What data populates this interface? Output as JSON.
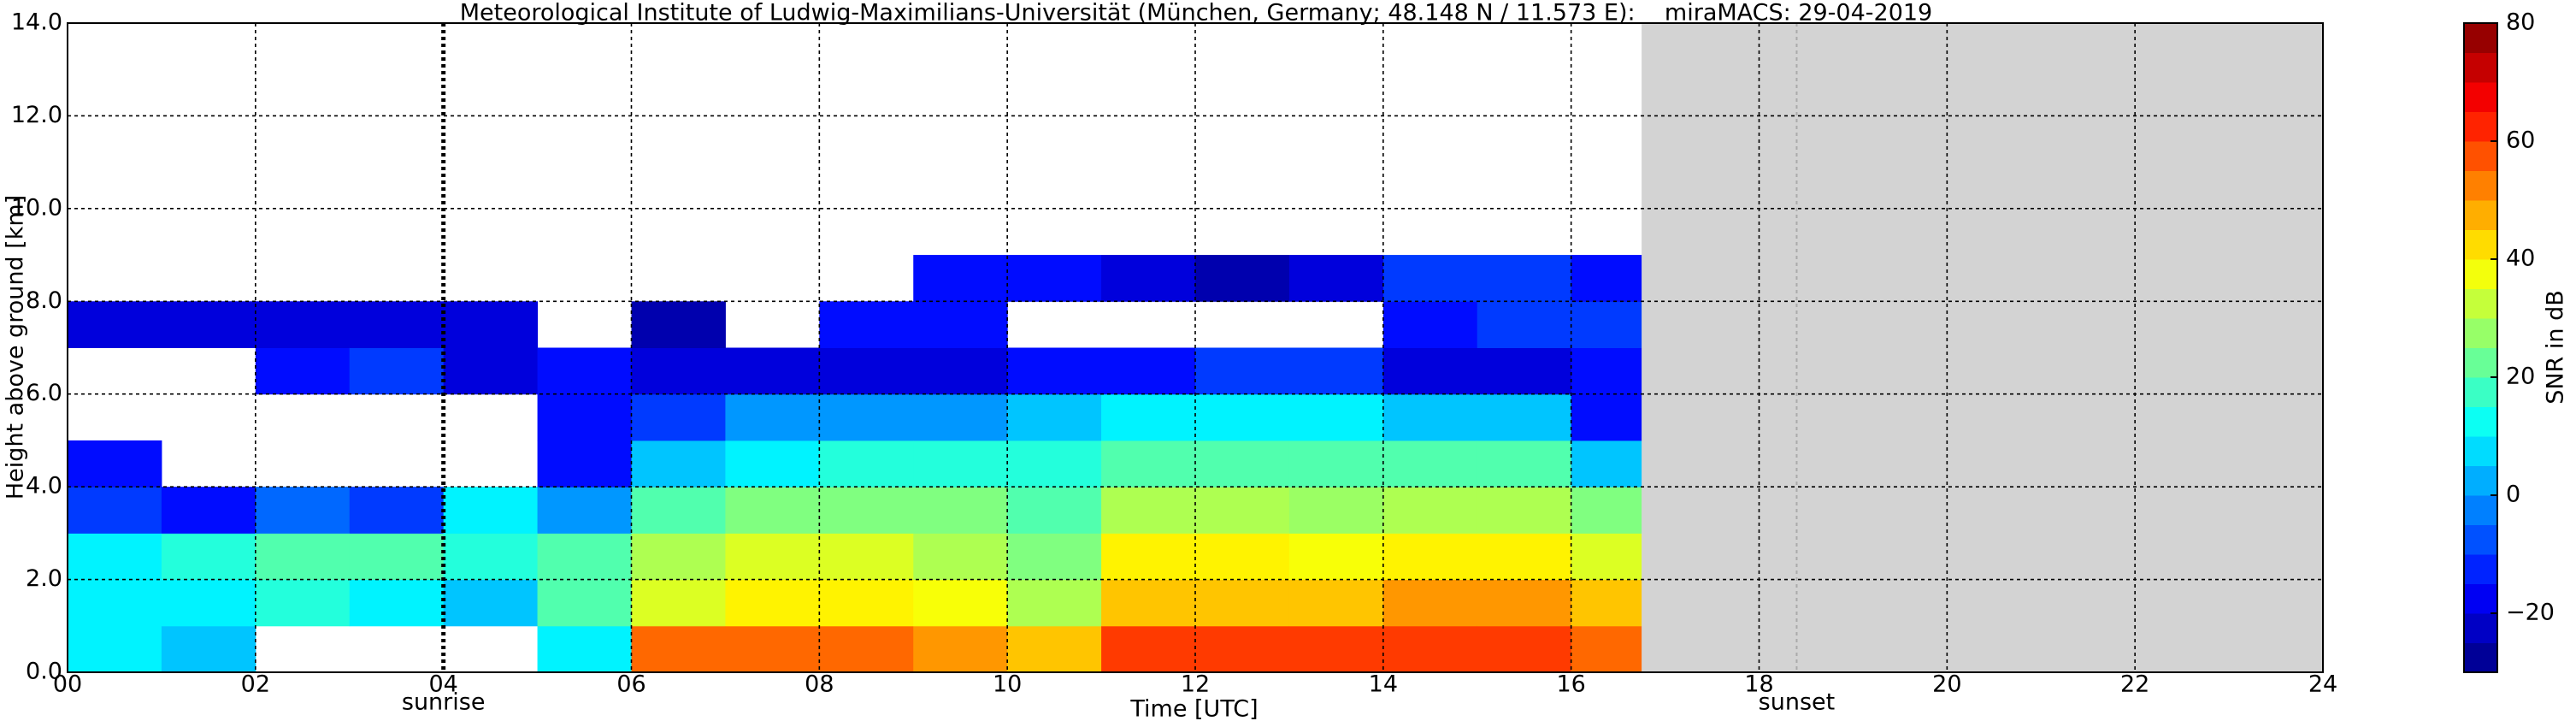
{
  "chart_data": {
    "type": "heatmap",
    "title": "Meteorological Institute of Ludwig-Maximilians-Universität (München, Germany; 48.148 N / 11.573 E):    miraMACS: 29-04-2019",
    "x_label": "Time [UTC]",
    "y_label": "Height above ground [km]",
    "colorbar_label": "SNR in dB",
    "colormap": "jet",
    "grid": true,
    "xlim": [
      0,
      24
    ],
    "xticks": [
      {
        "value": 0,
        "label": "00"
      },
      {
        "value": 2,
        "label": "02"
      },
      {
        "value": 4,
        "label": "04"
      },
      {
        "value": 6,
        "label": "06"
      },
      {
        "value": 8,
        "label": "08"
      },
      10,
      12,
      14,
      16,
      18,
      20,
      22,
      24
    ],
    "ylim": [
      0,
      14
    ],
    "yticks": [
      {
        "value": 0,
        "label": "0.0"
      },
      {
        "value": 2,
        "label": "2.0"
      },
      {
        "value": 4,
        "label": "4.0"
      },
      {
        "value": 6,
        "label": "6.0"
      },
      {
        "value": 8,
        "label": "8.0"
      },
      {
        "value": 10,
        "label": "10.0"
      },
      {
        "value": 12,
        "label": "12.0"
      },
      {
        "value": 14,
        "label": "14.0"
      }
    ],
    "clim": [
      -30,
      80
    ],
    "cticks": [
      {
        "value": -20,
        "label": "−20"
      },
      0,
      20,
      40,
      60,
      80
    ],
    "no_data": [
      16.75,
      24
    ],
    "no_data_color": "#d3d3d3",
    "annotations": [
      {
        "text": "sunrise",
        "x": 4
      },
      {
        "text": "sunset",
        "x": 18.4
      }
    ],
    "x_bins": [
      0,
      1,
      2,
      3,
      4,
      5,
      6,
      7,
      8,
      9,
      10,
      11,
      12,
      13,
      14,
      15,
      16,
      17,
      18,
      19,
      20,
      21,
      22,
      23,
      24
    ],
    "y_bins": [
      0,
      1,
      2,
      3,
      4,
      5,
      6,
      7,
      8,
      9,
      10,
      11,
      12,
      13,
      14
    ],
    "values": [
      [
        10,
        10,
        10,
        -10,
        -15,
        null,
        null,
        -20,
        null,
        null,
        null,
        null,
        null,
        null
      ],
      [
        5,
        10,
        15,
        -15,
        null,
        null,
        null,
        -20,
        null,
        null,
        null,
        null,
        null,
        null
      ],
      [
        null,
        15,
        20,
        -5,
        null,
        null,
        -15,
        -20,
        null,
        null,
        null,
        null,
        null,
        null
      ],
      [
        null,
        10,
        20,
        -10,
        null,
        null,
        -10,
        -20,
        null,
        null,
        null,
        null,
        null,
        null
      ],
      [
        null,
        5,
        15,
        10,
        null,
        null,
        -20,
        -20,
        null,
        null,
        null,
        null,
        null,
        null
      ],
      [
        10,
        20,
        20,
        0,
        -15,
        -15,
        -15,
        null,
        null,
        null,
        null,
        null,
        null,
        null
      ],
      [
        55,
        35,
        30,
        20,
        5,
        -10,
        -20,
        -25,
        null,
        null,
        null,
        null,
        null,
        null
      ],
      [
        55,
        40,
        35,
        25,
        10,
        0,
        -20,
        null,
        null,
        null,
        null,
        null,
        null,
        null
      ],
      [
        55,
        40,
        35,
        25,
        15,
        0,
        -20,
        -15,
        null,
        null,
        null,
        null,
        null,
        null
      ],
      [
        50,
        38,
        30,
        25,
        15,
        0,
        -20,
        -15,
        -15,
        null,
        null,
        null,
        null,
        null
      ],
      [
        45,
        30,
        25,
        20,
        15,
        5,
        -15,
        null,
        -15,
        null,
        null,
        null,
        null,
        null
      ],
      [
        60,
        45,
        40,
        30,
        20,
        10,
        -15,
        null,
        -20,
        null,
        null,
        null,
        null,
        null
      ],
      [
        60,
        45,
        40,
        30,
        20,
        10,
        -10,
        null,
        -25,
        null,
        null,
        null,
        null,
        null
      ],
      [
        60,
        45,
        38,
        28,
        20,
        10,
        -10,
        null,
        -20,
        null,
        null,
        null,
        null,
        null
      ],
      [
        60,
        50,
        40,
        30,
        20,
        5,
        -20,
        -15,
        -10,
        null,
        null,
        null,
        null,
        null
      ],
      [
        60,
        50,
        40,
        30,
        20,
        5,
        -20,
        -10,
        -10,
        null,
        null,
        null,
        null,
        null
      ],
      [
        55,
        45,
        35,
        25,
        5,
        -15,
        -15,
        -10,
        -15,
        null,
        null,
        null,
        null,
        null
      ],
      [
        null,
        null,
        null,
        null,
        null,
        null,
        null,
        null,
        null,
        null,
        null,
        null,
        null,
        null
      ],
      [
        null,
        null,
        null,
        null,
        null,
        null,
        null,
        null,
        null,
        null,
        null,
        null,
        null,
        null
      ],
      [
        null,
        null,
        null,
        null,
        null,
        null,
        null,
        null,
        null,
        null,
        null,
        null,
        null,
        null
      ],
      [
        null,
        null,
        null,
        null,
        null,
        null,
        null,
        null,
        null,
        null,
        null,
        null,
        null,
        null
      ],
      [
        null,
        null,
        null,
        null,
        null,
        null,
        null,
        null,
        null,
        null,
        null,
        null,
        null,
        null
      ],
      [
        null,
        null,
        null,
        null,
        null,
        null,
        null,
        null,
        null,
        null,
        null,
        null,
        null,
        null
      ],
      [
        null,
        null,
        null,
        null,
        null,
        null,
        null,
        null,
        null,
        null,
        null,
        null,
        null,
        null
      ]
    ]
  }
}
